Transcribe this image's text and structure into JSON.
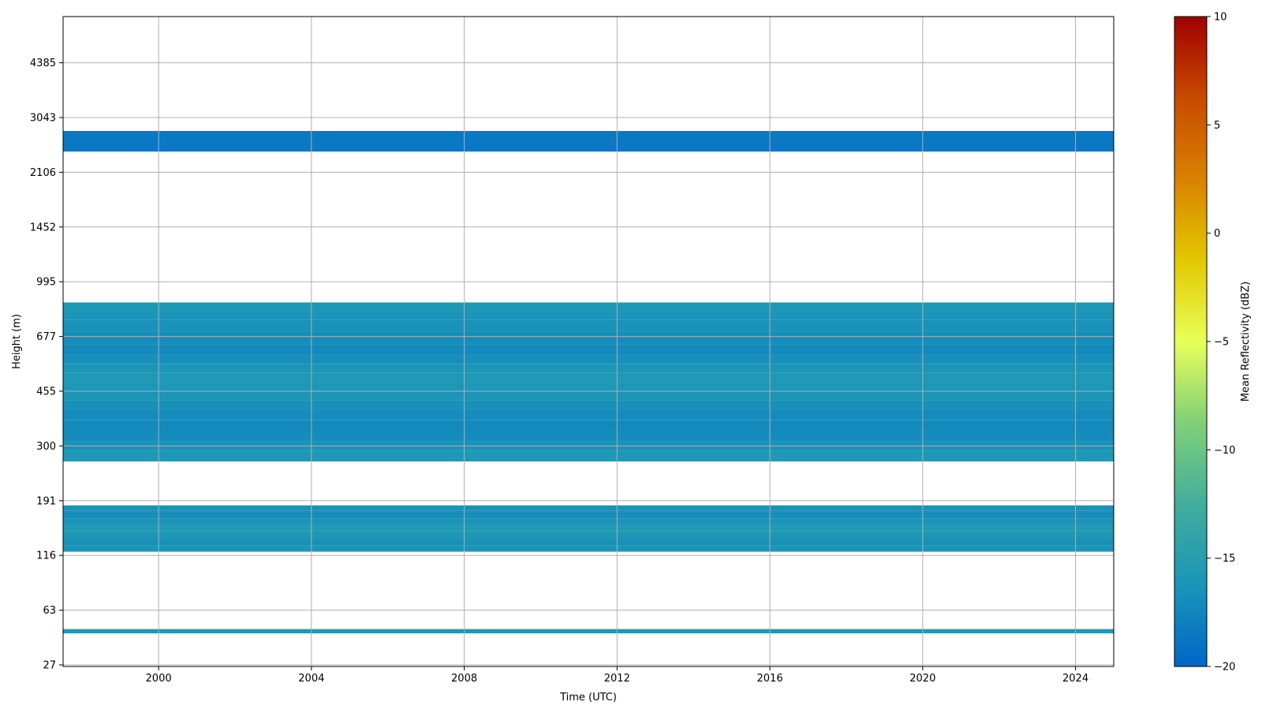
{
  "chart_data": {
    "type": "heatmap",
    "title": "",
    "xlabel": "Time (UTC)",
    "ylabel": "Height (m)",
    "x_ticks": [
      2000,
      2004,
      2008,
      2012,
      2016,
      2020,
      2024
    ],
    "x_range": [
      1997.5,
      2025.0
    ],
    "y_ticks": [
      27,
      63,
      116,
      191,
      300,
      455,
      677,
      995,
      1452,
      2106,
      3043,
      4385
    ],
    "grid": true,
    "colorbar": {
      "label": "Mean Reflectivity (dBZ)",
      "range": [
        -20,
        10
      ],
      "ticks": [
        -20,
        -15,
        -10,
        -5,
        0,
        5,
        10
      ],
      "tick_labels": [
        "−20",
        "−15",
        "−10",
        "−5",
        "0",
        "5",
        "10"
      ],
      "colors": [
        "#0066c8",
        "#1a95b8",
        "#42ae9c",
        "#7fd078",
        "#e8ff5a",
        "#e2c800",
        "#d88200",
        "#c84a00",
        "#a00000"
      ]
    },
    "layers": [
      {
        "height_bottom": 44,
        "height_top": 47,
        "dbz": -15.8
      },
      {
        "height_bottom": 120,
        "height_top": 127,
        "dbz": -16.2
      },
      {
        "height_bottom": 127,
        "height_top": 136,
        "dbz": -16.6
      },
      {
        "height_bottom": 136,
        "height_top": 145,
        "dbz": -15.9
      },
      {
        "height_bottom": 145,
        "height_top": 152,
        "dbz": -15.5
      },
      {
        "height_bottom": 152,
        "height_top": 162,
        "dbz": -16.3
      },
      {
        "height_bottom": 162,
        "height_top": 174,
        "dbz": -16.8
      },
      {
        "height_bottom": 174,
        "height_top": 183,
        "dbz": -16.4
      },
      {
        "height_bottom": 264,
        "height_top": 288,
        "dbz": -15.8
      },
      {
        "height_bottom": 288,
        "height_top": 310,
        "dbz": -16.4
      },
      {
        "height_bottom": 310,
        "height_top": 335,
        "dbz": -16.9
      },
      {
        "height_bottom": 335,
        "height_top": 365,
        "dbz": -17.2
      },
      {
        "height_bottom": 365,
        "height_top": 395,
        "dbz": -17.0
      },
      {
        "height_bottom": 395,
        "height_top": 425,
        "dbz": -16.6
      },
      {
        "height_bottom": 425,
        "height_top": 455,
        "dbz": -16.2
      },
      {
        "height_bottom": 455,
        "height_top": 490,
        "dbz": -16.0
      },
      {
        "height_bottom": 490,
        "height_top": 520,
        "dbz": -15.7
      },
      {
        "height_bottom": 520,
        "height_top": 555,
        "dbz": -16.2
      },
      {
        "height_bottom": 555,
        "height_top": 590,
        "dbz": -16.7
      },
      {
        "height_bottom": 590,
        "height_top": 640,
        "dbz": -17.1
      },
      {
        "height_bottom": 640,
        "height_top": 700,
        "dbz": -16.9
      },
      {
        "height_bottom": 700,
        "height_top": 760,
        "dbz": -16.5
      },
      {
        "height_bottom": 760,
        "height_top": 820,
        "dbz": -16.2
      },
      {
        "height_bottom": 820,
        "height_top": 860,
        "dbz": -16.0
      },
      {
        "height_bottom": 2420,
        "height_top": 2780,
        "dbz": -18.6
      }
    ]
  }
}
